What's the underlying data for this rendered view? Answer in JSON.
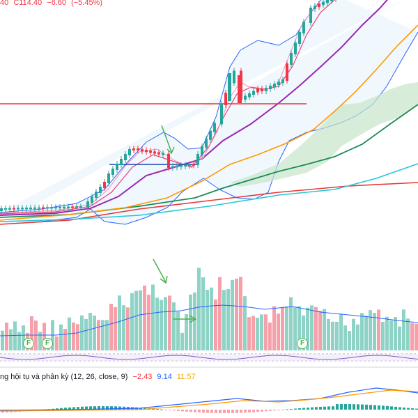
{
  "ohlc": {
    "open_frag": "40",
    "close_label": "C114.40",
    "change": "−6.60",
    "change_pct": "(−5.45%)"
  },
  "macd": {
    "title": "ng hội tụ và phân kỳ (12, 26, close, 9)",
    "hist": "−2.43",
    "macd_val": "9.14",
    "signal_val": "11.57"
  },
  "badges": [
    "F",
    "F",
    "F"
  ],
  "colors": {
    "up": "#26a69a",
    "down": "#f23645",
    "bollinger": "#2962ff",
    "ma_fast": "#ec407a",
    "ma_mid": "#9c27b0",
    "ma_orange": "#ff9800",
    "ma_green": "#1b8a5a",
    "ma_teal": "#26c6da",
    "ma_red": "#e53935",
    "cloud": "#c8e6c9",
    "annotation_arrow": "#4caf50",
    "support_line": "#1e40af",
    "resistance_line": "#e53935"
  }
}
